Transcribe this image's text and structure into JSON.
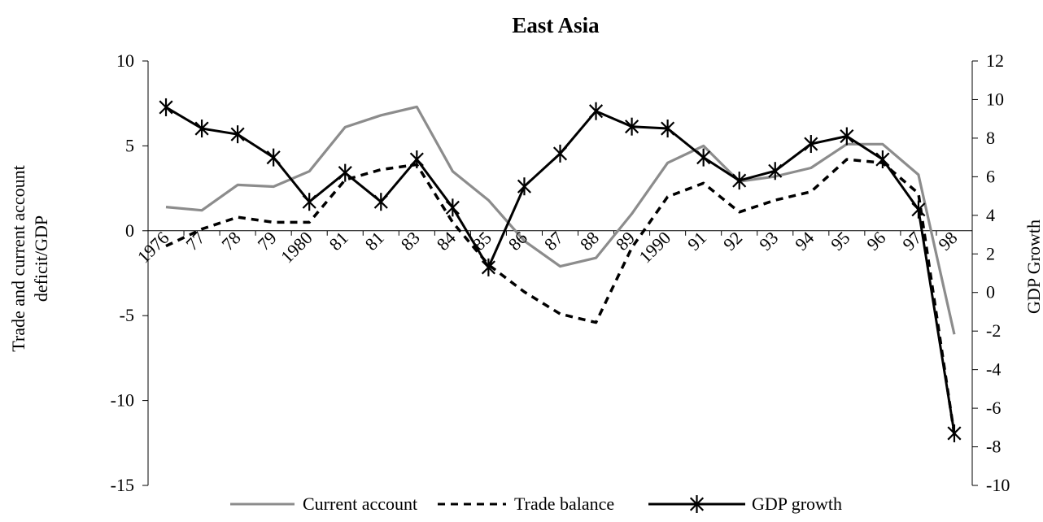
{
  "chart_data": {
    "type": "line",
    "title": "East Asia",
    "ylabel_left": "Trade and current account deficit/GDP",
    "ylabel_right": "GDP Growth",
    "xlabel": "",
    "categories": [
      "1976",
      "77",
      "78",
      "79",
      "1980",
      "81",
      "81",
      "83",
      "84",
      "85",
      "86",
      "87",
      "88",
      "89",
      "1990",
      "91",
      "92",
      "93",
      "94",
      "95",
      "96",
      "97",
      "98"
    ],
    "ylim_left": [
      -15,
      10
    ],
    "ylim_right": [
      -10,
      12
    ],
    "yticks_left": [
      "10",
      "5",
      "0",
      "-5",
      "-10",
      "-15"
    ],
    "yticks_right": [
      "12",
      "10",
      "8",
      "6",
      "4",
      "2",
      "0",
      "-2",
      "-4",
      "-6",
      "-8",
      "-10"
    ],
    "grid": false,
    "legend_position": "bottom",
    "series": [
      {
        "name": "Current account",
        "axis": "left",
        "color": "#8c8c8c",
        "style": "solid",
        "values": [
          1.4,
          1.2,
          2.7,
          2.6,
          3.5,
          6.1,
          6.8,
          7.3,
          3.5,
          1.8,
          -0.6,
          -2.1,
          -1.6,
          1.0,
          4.0,
          5.0,
          2.9,
          3.2,
          3.7,
          5.1,
          5.1,
          3.3,
          -6.1
        ]
      },
      {
        "name": "Trade balance",
        "axis": "left",
        "color": "#000000",
        "style": "dashed",
        "values": [
          -0.9,
          0.1,
          0.8,
          0.5,
          0.5,
          3.0,
          3.6,
          3.9,
          0.5,
          -2.0,
          -3.6,
          -4.9,
          -5.4,
          -1.0,
          2.0,
          2.8,
          1.1,
          1.8,
          2.3,
          4.2,
          4.0,
          2.2,
          -12.0
        ]
      },
      {
        "name": "GDP growth",
        "axis": "right",
        "color": "#000000",
        "style": "solid-marker",
        "marker": "asterisk",
        "values": [
          9.6,
          8.5,
          8.2,
          7.0,
          4.7,
          6.2,
          4.7,
          6.9,
          4.4,
          1.3,
          5.5,
          7.2,
          9.4,
          8.6,
          8.5,
          7.0,
          5.8,
          6.3,
          7.7,
          8.1,
          6.9,
          4.3,
          -7.3
        ]
      }
    ]
  }
}
